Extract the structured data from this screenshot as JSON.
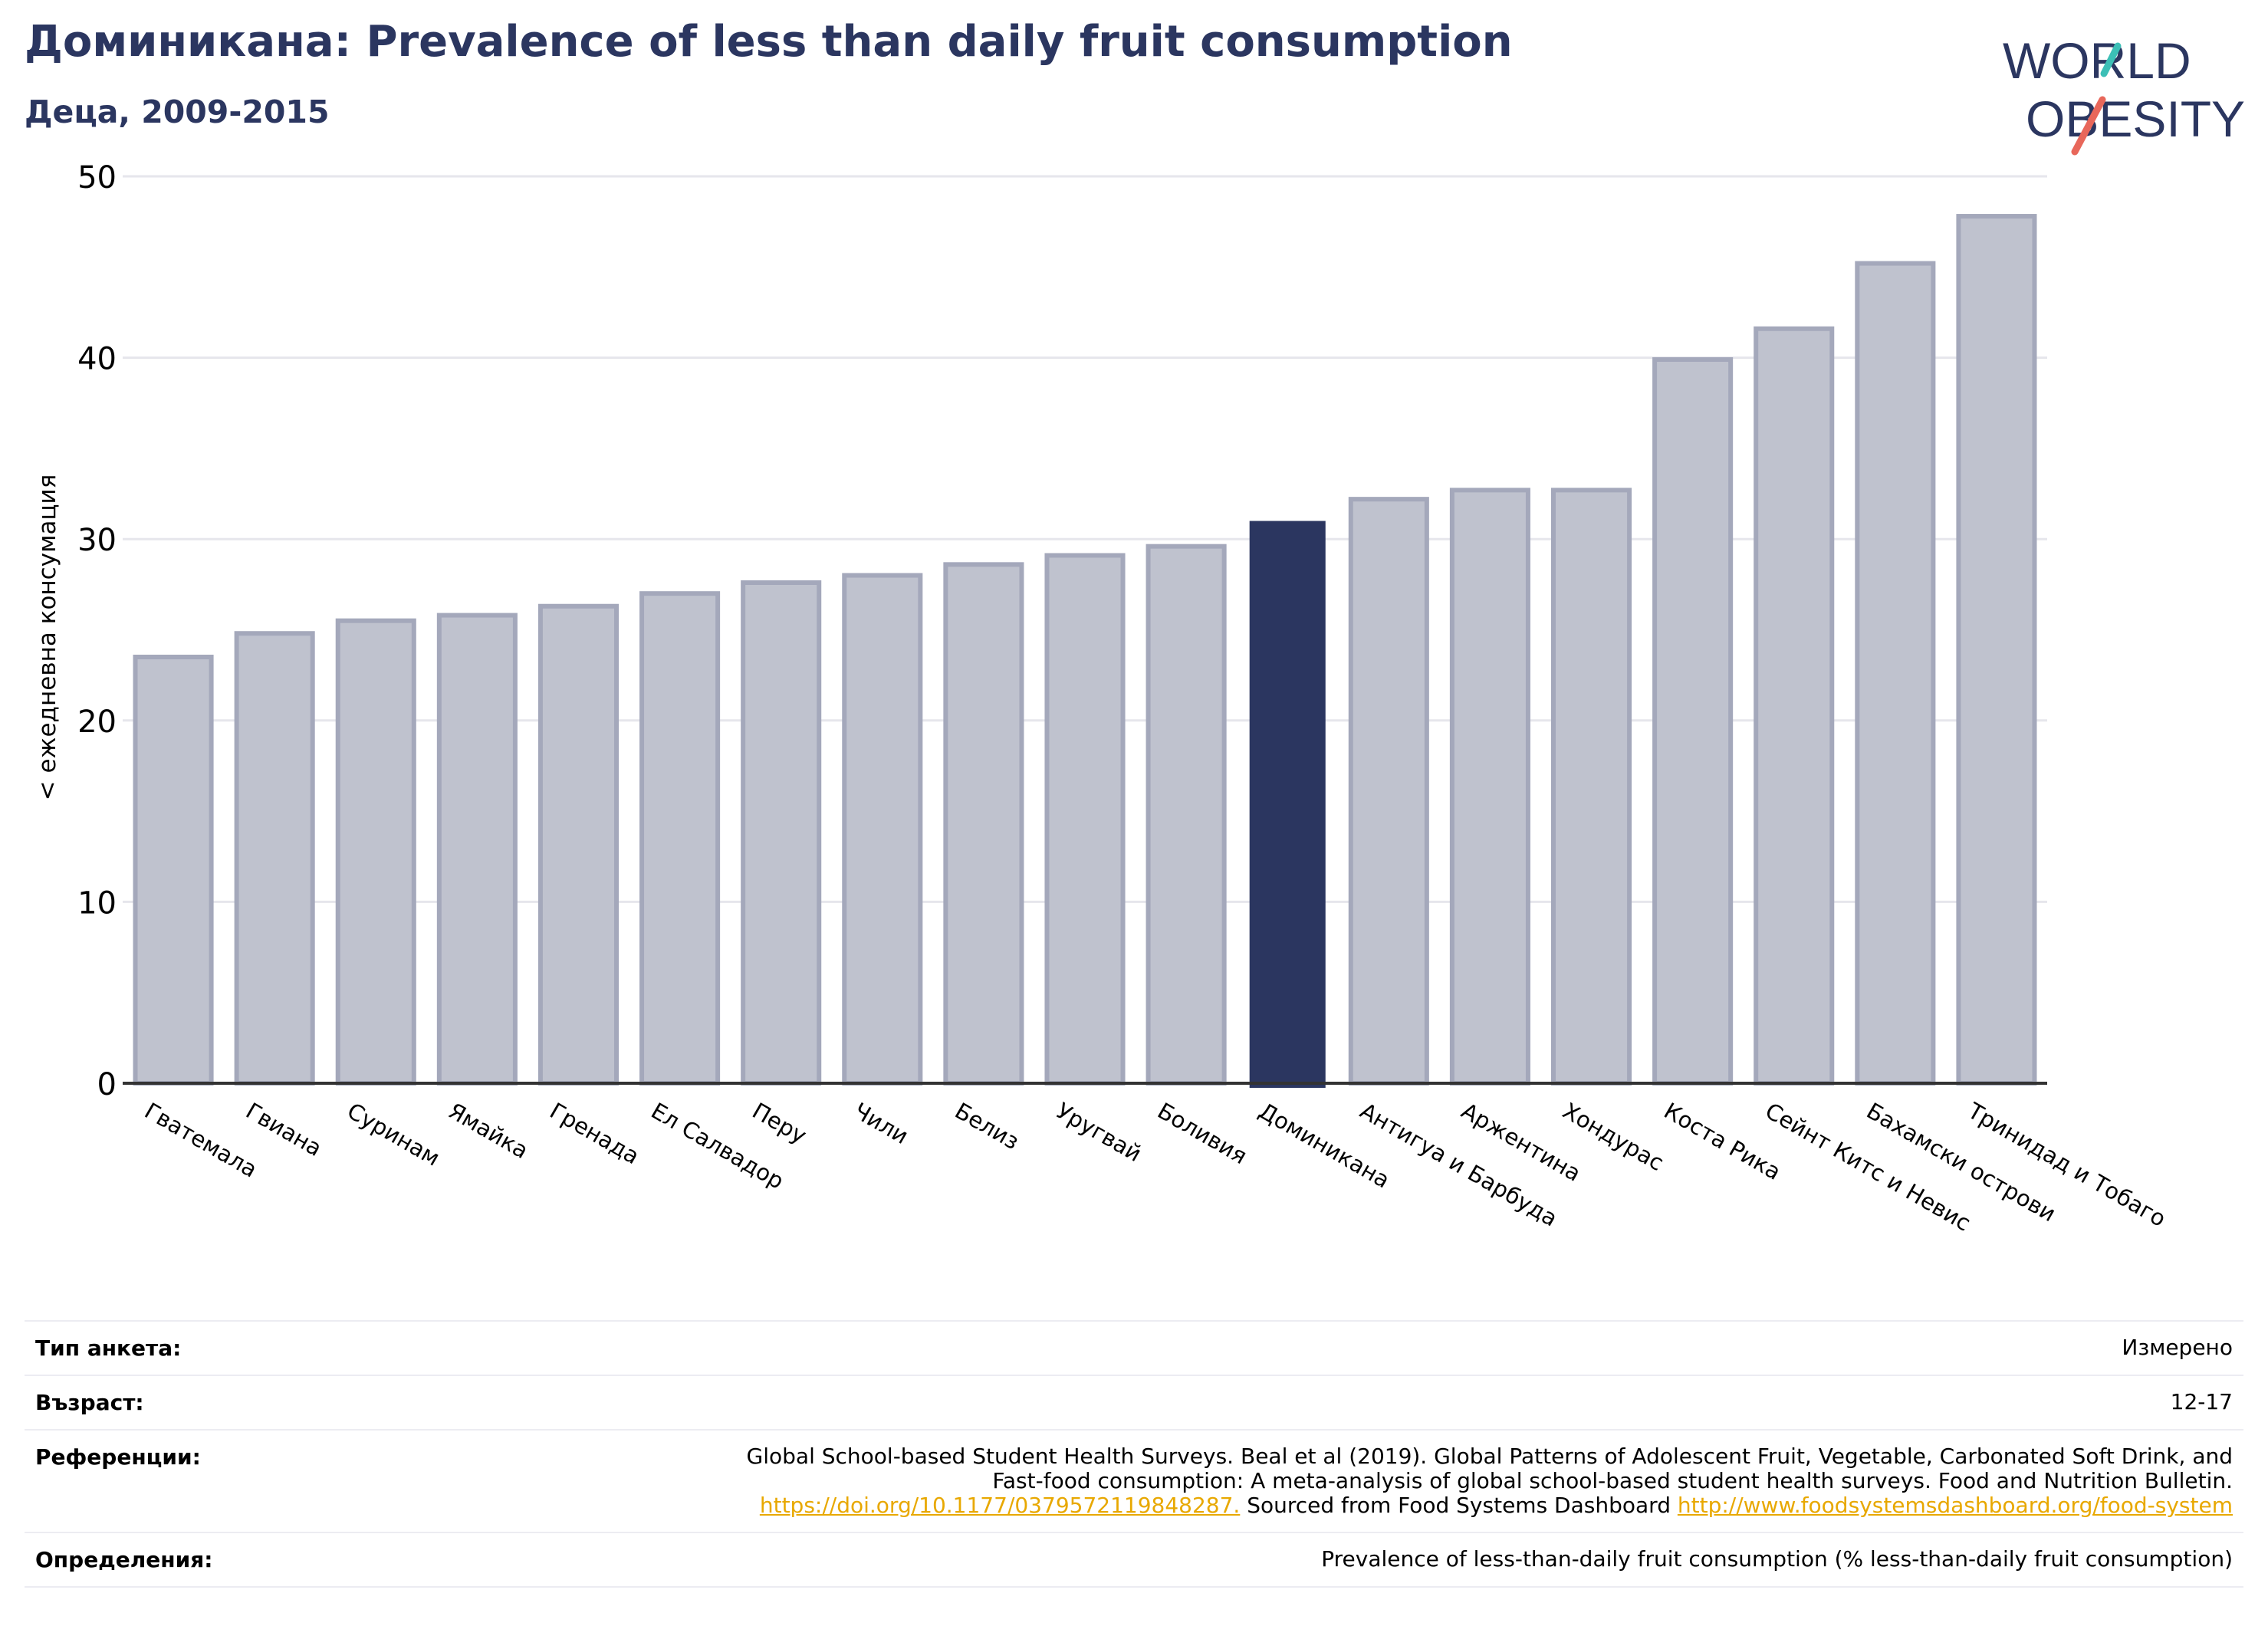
{
  "header": {
    "title": "Доминикана: Prevalence of less than daily fruit consumption",
    "subtitle": "Деца, 2009-2015"
  },
  "logo": {
    "line1": "WORLD",
    "line2": "OBESITY",
    "colors": {
      "text": "#2b3660",
      "slash_red": "#e8675a",
      "slash_teal": "#3cbfb6"
    }
  },
  "chart_data": {
    "type": "bar",
    "title": "Доминикана: Prevalence of less than daily fruit consumption",
    "subtitle": "Деца, 2009-2015",
    "ylabel": "< ежедневна консумация",
    "xlabel": "",
    "ylim": [
      0,
      50
    ],
    "yticks": [
      0,
      10,
      20,
      30,
      40,
      50
    ],
    "grid": true,
    "highlight": "Доминикана",
    "colors": {
      "bar": "#bfc2ce",
      "bar_edge": "#a4a8bb",
      "highlight": "#2b3660",
      "grid": "#e6e6ec",
      "axis": "#333333"
    },
    "categories": [
      "Гватемала",
      "Гвиана",
      "Суринам",
      "Ямайка",
      "Гренада",
      "Ел Салвадор",
      "Перу",
      "Чили",
      "Белиз",
      "Уругвай",
      "Боливия",
      "Доминикана",
      "Антигуа и Барбуда",
      "Аржентина",
      "Хондурас",
      "Коста Рика",
      "Сейнт Китс и Невис",
      "Бахамски острови",
      "Тринидад и Тобаго"
    ],
    "values": [
      23.5,
      24.8,
      25.5,
      25.8,
      26.3,
      27.0,
      27.6,
      28.0,
      28.6,
      29.1,
      29.6,
      31.0,
      32.2,
      32.7,
      32.7,
      39.9,
      41.6,
      45.2,
      47.8
    ]
  },
  "meta": {
    "rows": [
      {
        "key": "Тип анкета:",
        "value": "Измерено"
      },
      {
        "key": "Възраст:",
        "value": "12-17"
      },
      {
        "key": "Референции:",
        "value_line1": "Global School-based Student Health Surveys. Beal et al (2019). Global Patterns of Adolescent Fruit, Vegetable, Carbonated Soft Drink, and",
        "value_line2": "Fast-food consumption: A meta-analysis of global school-based student health surveys. Food and Nutrition Bulletin.",
        "link1": "https://doi.org/10.1177/0379572119848287.",
        "value_mid": " Sourced from Food Systems Dashboard ",
        "link2": "http://www.foodsystemsdashboard.org/food-system"
      },
      {
        "key": "Определения:",
        "value": "Prevalence of less-than-daily fruit consumption (% less-than-daily fruit consumption)"
      }
    ]
  }
}
